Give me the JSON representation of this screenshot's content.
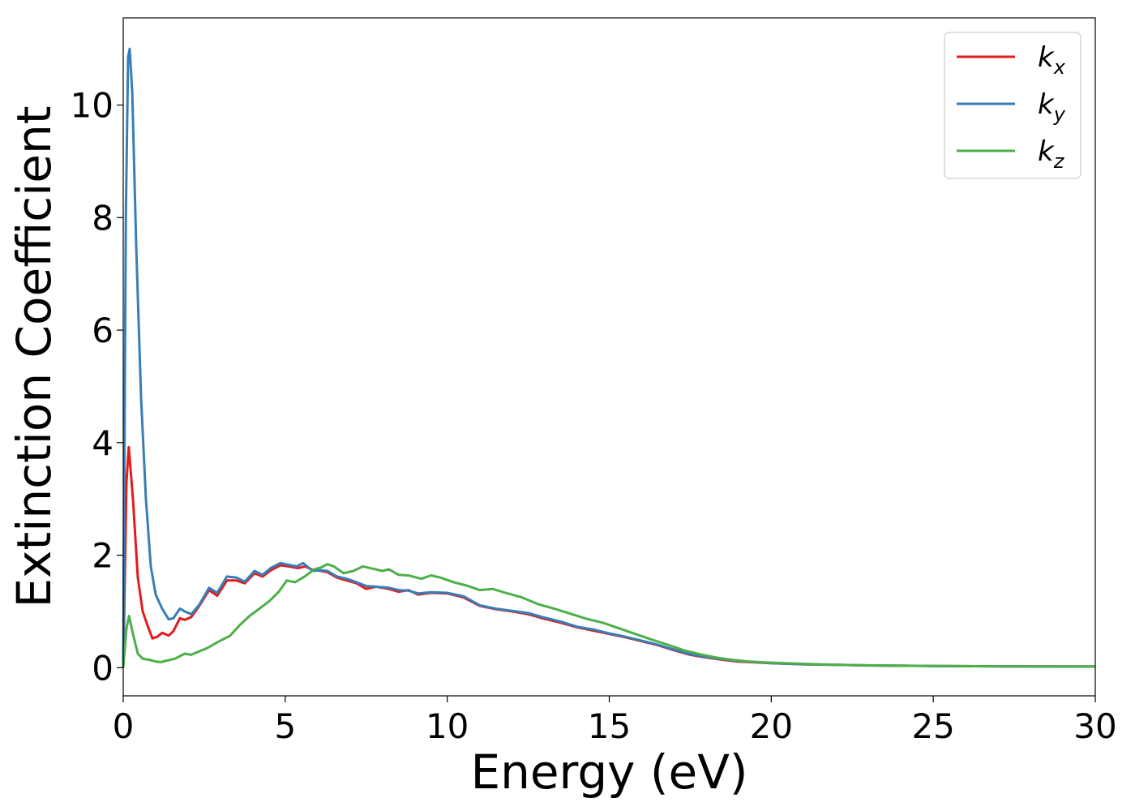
{
  "chart_data": {
    "type": "line",
    "title": "",
    "xlabel": "Energy (eV)",
    "ylabel": "Extinction Coefficient",
    "xlim": [
      0,
      30
    ],
    "ylim": [
      -0.5,
      11.55
    ],
    "xticks": [
      0,
      5,
      10,
      15,
      20,
      25,
      30
    ],
    "yticks": [
      0,
      2,
      4,
      6,
      8,
      10
    ],
    "grid": false,
    "legend_position": "top-right",
    "series": [
      {
        "name": "k",
        "subscript": "x",
        "color": "#e41a1c",
        "points": [
          [
            0,
            0
          ],
          [
            0.1,
            3.3
          ],
          [
            0.17,
            3.92
          ],
          [
            0.3,
            3.0
          ],
          [
            0.45,
            1.6
          ],
          [
            0.6,
            1.0
          ],
          [
            0.75,
            0.75
          ],
          [
            0.9,
            0.52
          ],
          [
            1.05,
            0.55
          ],
          [
            1.2,
            0.62
          ],
          [
            1.4,
            0.57
          ],
          [
            1.55,
            0.65
          ],
          [
            1.75,
            0.88
          ],
          [
            1.9,
            0.85
          ],
          [
            2.1,
            0.9
          ],
          [
            2.35,
            1.1
          ],
          [
            2.65,
            1.38
          ],
          [
            2.9,
            1.28
          ],
          [
            3.2,
            1.55
          ],
          [
            3.5,
            1.55
          ],
          [
            3.75,
            1.5
          ],
          [
            4.05,
            1.68
          ],
          [
            4.3,
            1.62
          ],
          [
            4.55,
            1.73
          ],
          [
            4.85,
            1.82
          ],
          [
            5.1,
            1.8
          ],
          [
            5.4,
            1.77
          ],
          [
            5.6,
            1.8
          ],
          [
            5.85,
            1.74
          ],
          [
            6.1,
            1.72
          ],
          [
            6.3,
            1.7
          ],
          [
            6.6,
            1.6
          ],
          [
            6.9,
            1.55
          ],
          [
            7.2,
            1.5
          ],
          [
            7.5,
            1.4
          ],
          [
            7.8,
            1.44
          ],
          [
            8.2,
            1.4
          ],
          [
            8.5,
            1.35
          ],
          [
            8.8,
            1.38
          ],
          [
            9.1,
            1.3
          ],
          [
            9.5,
            1.33
          ],
          [
            10.0,
            1.32
          ],
          [
            10.5,
            1.25
          ],
          [
            11.0,
            1.1
          ],
          [
            11.5,
            1.04
          ],
          [
            12.0,
            1.0
          ],
          [
            12.5,
            0.95
          ],
          [
            13.0,
            0.87
          ],
          [
            13.5,
            0.8
          ],
          [
            14.0,
            0.72
          ],
          [
            14.5,
            0.66
          ],
          [
            15.0,
            0.6
          ],
          [
            15.5,
            0.54
          ],
          [
            16.0,
            0.47
          ],
          [
            16.5,
            0.4
          ],
          [
            17.0,
            0.31
          ],
          [
            17.5,
            0.23
          ],
          [
            18.0,
            0.18
          ],
          [
            18.5,
            0.14
          ],
          [
            19.0,
            0.11
          ],
          [
            20.0,
            0.08
          ],
          [
            21.0,
            0.06
          ],
          [
            22.0,
            0.05
          ],
          [
            23.0,
            0.04
          ],
          [
            25.0,
            0.03
          ],
          [
            27.0,
            0.025
          ],
          [
            30.0,
            0.02
          ]
        ]
      },
      {
        "name": "k",
        "subscript": "y",
        "color": "#377eb8",
        "points": [
          [
            0,
            0
          ],
          [
            0.08,
            8.0
          ],
          [
            0.15,
            10.85
          ],
          [
            0.2,
            11.0
          ],
          [
            0.28,
            10.2
          ],
          [
            0.4,
            7.5
          ],
          [
            0.55,
            4.8
          ],
          [
            0.7,
            3.0
          ],
          [
            0.85,
            1.8
          ],
          [
            1.0,
            1.3
          ],
          [
            1.2,
            1.05
          ],
          [
            1.4,
            0.86
          ],
          [
            1.55,
            0.88
          ],
          [
            1.75,
            1.05
          ],
          [
            1.9,
            1.0
          ],
          [
            2.1,
            0.95
          ],
          [
            2.35,
            1.12
          ],
          [
            2.65,
            1.42
          ],
          [
            2.9,
            1.33
          ],
          [
            3.2,
            1.62
          ],
          [
            3.5,
            1.6
          ],
          [
            3.75,
            1.53
          ],
          [
            4.05,
            1.72
          ],
          [
            4.3,
            1.65
          ],
          [
            4.55,
            1.77
          ],
          [
            4.85,
            1.86
          ],
          [
            5.1,
            1.83
          ],
          [
            5.35,
            1.8
          ],
          [
            5.55,
            1.86
          ],
          [
            5.85,
            1.72
          ],
          [
            6.1,
            1.73
          ],
          [
            6.3,
            1.72
          ],
          [
            6.6,
            1.62
          ],
          [
            6.9,
            1.58
          ],
          [
            7.2,
            1.52
          ],
          [
            7.5,
            1.45
          ],
          [
            7.8,
            1.44
          ],
          [
            8.2,
            1.42
          ],
          [
            8.5,
            1.38
          ],
          [
            8.8,
            1.37
          ],
          [
            9.1,
            1.32
          ],
          [
            9.5,
            1.34
          ],
          [
            10.0,
            1.33
          ],
          [
            10.5,
            1.27
          ],
          [
            11.0,
            1.11
          ],
          [
            11.5,
            1.05
          ],
          [
            12.0,
            1.01
          ],
          [
            12.5,
            0.97
          ],
          [
            13.0,
            0.89
          ],
          [
            13.5,
            0.82
          ],
          [
            14.0,
            0.73
          ],
          [
            14.5,
            0.68
          ],
          [
            15.0,
            0.61
          ],
          [
            15.5,
            0.55
          ],
          [
            16.0,
            0.48
          ],
          [
            16.5,
            0.41
          ],
          [
            17.0,
            0.32
          ],
          [
            17.5,
            0.24
          ],
          [
            18.0,
            0.19
          ],
          [
            18.5,
            0.15
          ],
          [
            19.0,
            0.12
          ],
          [
            20.0,
            0.08
          ],
          [
            21.0,
            0.06
          ],
          [
            22.0,
            0.05
          ],
          [
            23.0,
            0.04
          ],
          [
            25.0,
            0.03
          ],
          [
            27.0,
            0.025
          ],
          [
            30.0,
            0.02
          ]
        ]
      },
      {
        "name": "k",
        "subscript": "z",
        "color": "#4daf4a",
        "points": [
          [
            0,
            0
          ],
          [
            0.1,
            0.7
          ],
          [
            0.18,
            0.92
          ],
          [
            0.3,
            0.6
          ],
          [
            0.45,
            0.25
          ],
          [
            0.6,
            0.16
          ],
          [
            0.8,
            0.14
          ],
          [
            1.0,
            0.11
          ],
          [
            1.15,
            0.1
          ],
          [
            1.3,
            0.12
          ],
          [
            1.6,
            0.16
          ],
          [
            1.9,
            0.25
          ],
          [
            2.1,
            0.23
          ],
          [
            2.3,
            0.28
          ],
          [
            2.6,
            0.35
          ],
          [
            2.9,
            0.45
          ],
          [
            3.3,
            0.57
          ],
          [
            3.6,
            0.76
          ],
          [
            3.9,
            0.92
          ],
          [
            4.2,
            1.05
          ],
          [
            4.5,
            1.18
          ],
          [
            4.8,
            1.35
          ],
          [
            5.05,
            1.55
          ],
          [
            5.3,
            1.52
          ],
          [
            5.6,
            1.62
          ],
          [
            5.9,
            1.75
          ],
          [
            6.1,
            1.78
          ],
          [
            6.3,
            1.84
          ],
          [
            6.5,
            1.8
          ],
          [
            6.8,
            1.68
          ],
          [
            7.1,
            1.72
          ],
          [
            7.4,
            1.8
          ],
          [
            7.7,
            1.76
          ],
          [
            8.0,
            1.72
          ],
          [
            8.2,
            1.75
          ],
          [
            8.5,
            1.65
          ],
          [
            8.8,
            1.64
          ],
          [
            9.2,
            1.58
          ],
          [
            9.5,
            1.64
          ],
          [
            9.8,
            1.6
          ],
          [
            10.2,
            1.52
          ],
          [
            10.6,
            1.46
          ],
          [
            11.0,
            1.38
          ],
          [
            11.4,
            1.4
          ],
          [
            11.8,
            1.33
          ],
          [
            12.3,
            1.25
          ],
          [
            12.8,
            1.13
          ],
          [
            13.3,
            1.05
          ],
          [
            13.8,
            0.96
          ],
          [
            14.3,
            0.87
          ],
          [
            14.8,
            0.8
          ],
          [
            15.3,
            0.7
          ],
          [
            15.8,
            0.6
          ],
          [
            16.3,
            0.5
          ],
          [
            16.8,
            0.41
          ],
          [
            17.3,
            0.31
          ],
          [
            17.8,
            0.24
          ],
          [
            18.3,
            0.18
          ],
          [
            18.8,
            0.14
          ],
          [
            19.3,
            0.11
          ],
          [
            20.0,
            0.09
          ],
          [
            21.0,
            0.07
          ],
          [
            22.0,
            0.05
          ],
          [
            23.0,
            0.04
          ],
          [
            25.0,
            0.03
          ],
          [
            27.0,
            0.025
          ],
          [
            30.0,
            0.02
          ]
        ]
      }
    ]
  }
}
